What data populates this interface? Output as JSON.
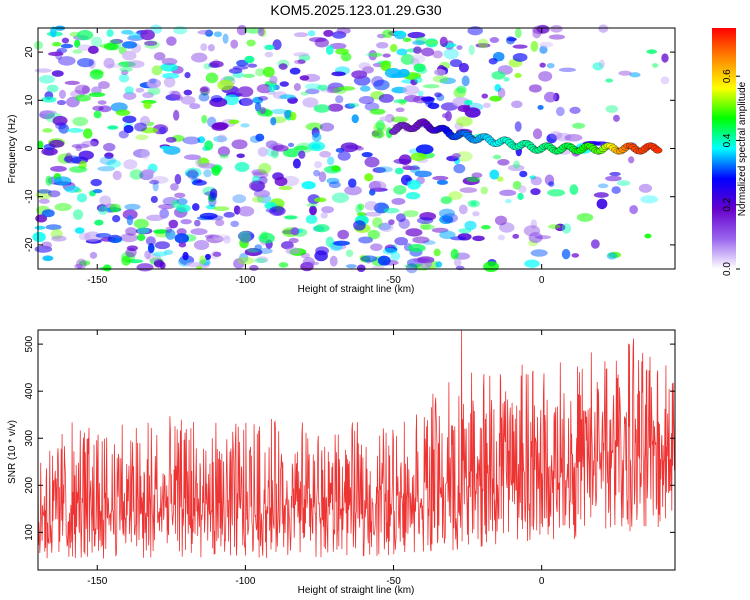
{
  "title": "KOM5.2025.123.01.29.G30",
  "chart_data": [
    {
      "type": "heatmap",
      "xlabel": "Height of straight line (km)",
      "ylabel": "Frequency (Hz)",
      "xlim": [
        -170,
        45
      ],
      "ylim": [
        -25,
        25
      ],
      "x_ticks": [
        -150,
        -100,
        -50,
        0
      ],
      "y_ticks": [
        -20,
        -10,
        0,
        10,
        20
      ],
      "colorbar": {
        "label": "Normalized spectral amplitude",
        "range": [
          0,
          0.75
        ],
        "ticks": [
          0.0,
          0.2,
          0.4,
          0.6
        ],
        "tick_labels": [
          "0.0",
          "0.2",
          "0.4",
          "0.6"
        ],
        "colors": [
          "#ffffff",
          "#9966ee",
          "#6600cc",
          "#0000ff",
          "#00ffff",
          "#00ff00",
          "#ffff00",
          "#ff8800",
          "#ff0000"
        ]
      },
      "ridge": [
        {
          "x": -50,
          "y": 4,
          "amp": 0.15
        },
        {
          "x": -40,
          "y": 5,
          "amp": 0.18
        },
        {
          "x": -30,
          "y": 3,
          "amp": 0.3
        },
        {
          "x": -20,
          "y": 2,
          "amp": 0.35
        },
        {
          "x": -10,
          "y": 1,
          "amp": 0.4
        },
        {
          "x": 0,
          "y": 0,
          "amp": 0.42
        },
        {
          "x": 10,
          "y": 0,
          "amp": 0.45
        },
        {
          "x": 20,
          "y": 0,
          "amp": 0.5
        },
        {
          "x": 30,
          "y": 0,
          "amp": 0.7
        },
        {
          "x": 40,
          "y": 0,
          "amp": 0.72
        }
      ]
    },
    {
      "type": "line",
      "xlabel": "Height of straight line (km)",
      "ylabel": "SNR (10 * v/v)",
      "xlim": [
        -170,
        45
      ],
      "ylim": [
        20,
        530
      ],
      "x_ticks": [
        -150,
        -100,
        -50,
        0
      ],
      "y_ticks": [
        100,
        200,
        300,
        400,
        500
      ],
      "series": [
        {
          "color": "#ee3333",
          "trend_x": [
            -170,
            -120,
            -80,
            -50,
            -30,
            -10,
            10,
            30,
            45
          ],
          "trend_baseline": [
            40,
            45,
            45,
            50,
            60,
            70,
            85,
            100,
            110
          ],
          "trend_mean": [
            120,
            120,
            125,
            135,
            165,
            185,
            200,
            230,
            240
          ],
          "trend_peak": [
            330,
            350,
            340,
            330,
            430,
            460,
            480,
            510,
            450
          ],
          "notable_peaks": [
            {
              "x": -27,
              "y": 530
            },
            {
              "x": 31,
              "y": 512
            }
          ]
        }
      ]
    }
  ]
}
